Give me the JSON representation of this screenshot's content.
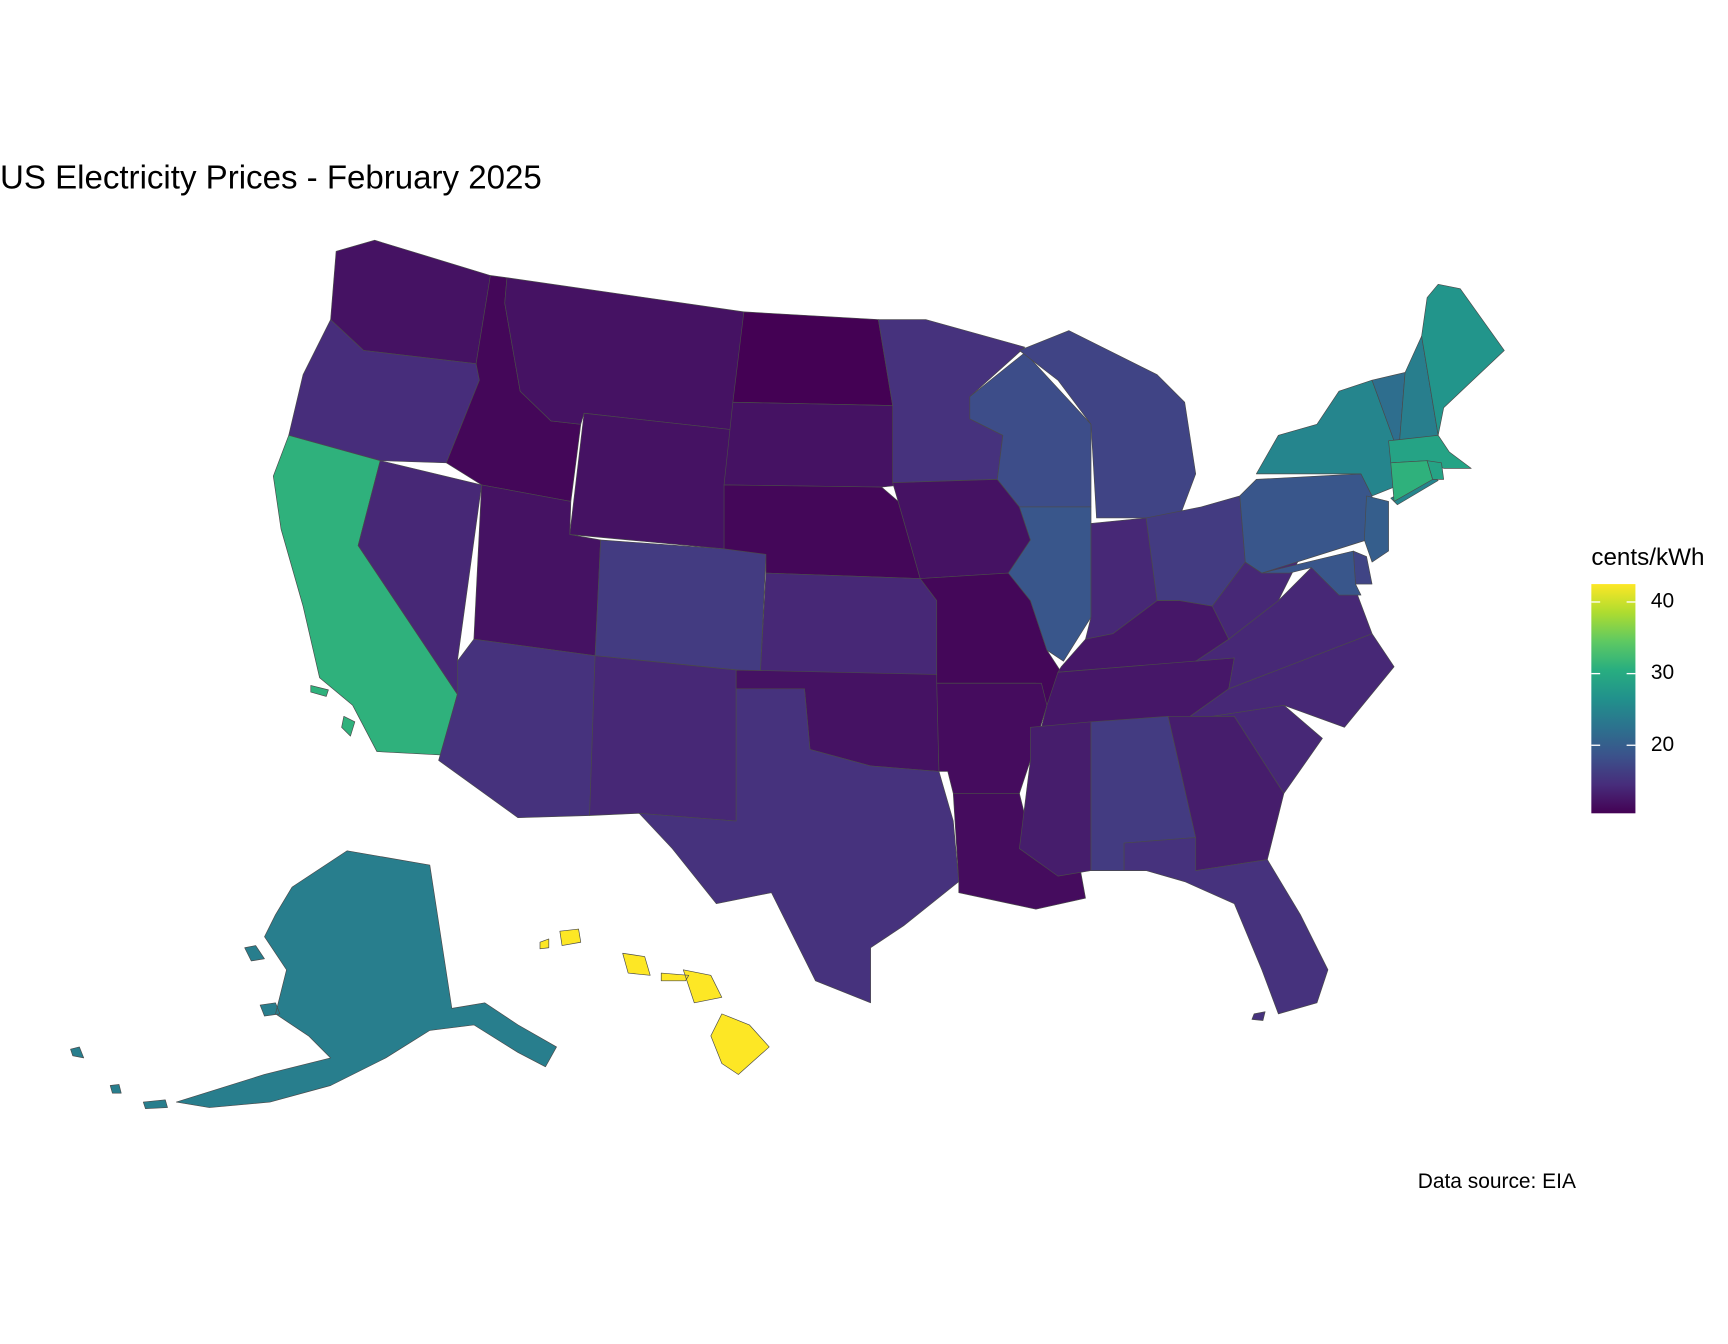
{
  "chart_data": {
    "type": "choropleth",
    "title": "US Electricity Prices - February 2025",
    "caption": "Data source: EIA",
    "legend_title": "cents/kWh",
    "colormap": "viridis",
    "fill_lim": [
      10.5,
      42.5
    ],
    "legend_ticks": [
      20,
      30,
      40
    ],
    "values": [
      12,
      14.5,
      31,
      14,
      11,
      12,
      12,
      12,
      16,
      15,
      14,
      10.5,
      12,
      11,
      14,
      12,
      15,
      15,
      12,
      11,
      11.5,
      11.5,
      18,
      17,
      19,
      14,
      16,
      12.5,
      12.5,
      13,
      16,
      13,
      15,
      14,
      14,
      14,
      14,
      19,
      25,
      22,
      24,
      27,
      29,
      31,
      29,
      20,
      17,
      19,
      24,
      42.5
    ]
  }
}
